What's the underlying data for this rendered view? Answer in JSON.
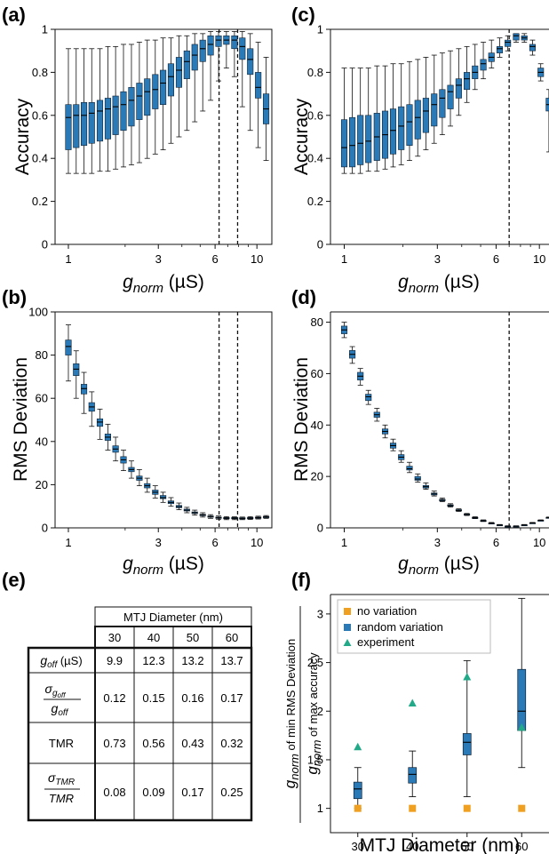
{
  "colors": {
    "box": "#2a7ab8",
    "no_variation": "#f0a020",
    "experiment": "#22aa88",
    "line": "#111111"
  },
  "chart_data": [
    {
      "panel": "(a)",
      "type": "box",
      "ylabel": "Accuracy",
      "xlabel_main": "g",
      "xlabel_sub": "norm",
      "xlabel_unit": " (µS)",
      "xscale": "log",
      "xlim": [
        0.85,
        12
      ],
      "ylim": [
        0,
        1
      ],
      "xticks": [
        1,
        3,
        6,
        10
      ],
      "yticks": [
        0,
        0.2,
        0.4,
        0.6,
        0.8,
        1
      ],
      "ytick_labels": [
        "0",
        "0.2",
        "0.4",
        "0.6",
        "0.8",
        "1"
      ],
      "vlines": [
        6.3,
        7.9
      ],
      "x": [
        1.0,
        1.1,
        1.21,
        1.33,
        1.47,
        1.62,
        1.78,
        1.96,
        2.16,
        2.38,
        2.62,
        2.89,
        3.18,
        3.5,
        3.86,
        4.25,
        4.68,
        5.16,
        5.68,
        6.26,
        6.89,
        7.6,
        8.37,
        9.22,
        10.16,
        11.19
      ],
      "q1": [
        0.44,
        0.45,
        0.46,
        0.47,
        0.48,
        0.49,
        0.51,
        0.53,
        0.55,
        0.58,
        0.6,
        0.63,
        0.65,
        0.69,
        0.73,
        0.77,
        0.81,
        0.85,
        0.88,
        0.92,
        0.93,
        0.91,
        0.86,
        0.79,
        0.68,
        0.56
      ],
      "med": [
        0.59,
        0.6,
        0.6,
        0.61,
        0.62,
        0.63,
        0.64,
        0.65,
        0.67,
        0.69,
        0.71,
        0.72,
        0.75,
        0.78,
        0.81,
        0.85,
        0.88,
        0.91,
        0.93,
        0.95,
        0.95,
        0.95,
        0.92,
        0.86,
        0.73,
        0.63
      ],
      "q3": [
        0.65,
        0.65,
        0.66,
        0.66,
        0.67,
        0.68,
        0.69,
        0.71,
        0.73,
        0.75,
        0.77,
        0.79,
        0.81,
        0.84,
        0.87,
        0.9,
        0.93,
        0.95,
        0.97,
        0.97,
        0.97,
        0.97,
        0.96,
        0.91,
        0.8,
        0.7
      ],
      "wlo": [
        0.33,
        0.33,
        0.33,
        0.33,
        0.34,
        0.34,
        0.35,
        0.36,
        0.37,
        0.38,
        0.4,
        0.42,
        0.44,
        0.47,
        0.5,
        0.53,
        0.57,
        0.62,
        0.67,
        0.76,
        0.82,
        0.78,
        0.64,
        0.53,
        0.45,
        0.39
      ],
      "whi": [
        0.91,
        0.91,
        0.91,
        0.91,
        0.91,
        0.92,
        0.92,
        0.93,
        0.93,
        0.94,
        0.95,
        0.95,
        0.96,
        0.96,
        0.97,
        0.97,
        0.98,
        0.98,
        0.99,
        0.99,
        0.99,
        0.99,
        0.99,
        0.98,
        0.94,
        0.87
      ]
    },
    {
      "panel": "(c)",
      "type": "box",
      "ylabel": "Accuracy",
      "xlabel_main": "g",
      "xlabel_sub": "norm",
      "xlabel_unit": " (µS)",
      "xscale": "log",
      "xlim": [
        0.85,
        11.2
      ],
      "ylim": [
        0,
        1
      ],
      "xticks": [
        1,
        3,
        6,
        10
      ],
      "yticks": [
        0,
        0.2,
        0.4,
        0.6,
        0.8,
        1
      ],
      "ytick_labels": [
        "0",
        "0.2",
        "0.4",
        "0.6",
        "0.8",
        "1"
      ],
      "vlines": [
        7.0
      ],
      "x": [
        1.0,
        1.1,
        1.21,
        1.33,
        1.47,
        1.62,
        1.78,
        1.96,
        2.16,
        2.38,
        2.62,
        2.89,
        3.18,
        3.5,
        3.86,
        4.25,
        4.68,
        5.16,
        5.68,
        6.26,
        6.89,
        7.6,
        8.37,
        9.22,
        10.16,
        11.19
      ],
      "q1": [
        0.36,
        0.36,
        0.37,
        0.38,
        0.39,
        0.4,
        0.42,
        0.44,
        0.46,
        0.49,
        0.52,
        0.55,
        0.59,
        0.63,
        0.68,
        0.72,
        0.77,
        0.81,
        0.85,
        0.89,
        0.92,
        0.95,
        0.95,
        0.9,
        0.78,
        0.62
      ],
      "med": [
        0.45,
        0.46,
        0.47,
        0.48,
        0.5,
        0.51,
        0.53,
        0.55,
        0.57,
        0.59,
        0.62,
        0.65,
        0.68,
        0.71,
        0.74,
        0.77,
        0.8,
        0.84,
        0.87,
        0.91,
        0.94,
        0.97,
        0.96,
        0.92,
        0.8,
        0.65
      ],
      "q3": [
        0.58,
        0.59,
        0.6,
        0.6,
        0.61,
        0.62,
        0.63,
        0.64,
        0.65,
        0.67,
        0.68,
        0.7,
        0.72,
        0.74,
        0.77,
        0.8,
        0.83,
        0.86,
        0.89,
        0.92,
        0.95,
        0.98,
        0.97,
        0.93,
        0.82,
        0.68
      ],
      "wlo": [
        0.33,
        0.33,
        0.33,
        0.34,
        0.34,
        0.35,
        0.36,
        0.37,
        0.39,
        0.41,
        0.44,
        0.47,
        0.51,
        0.55,
        0.6,
        0.66,
        0.72,
        0.77,
        0.82,
        0.87,
        0.9,
        0.94,
        0.94,
        0.88,
        0.76,
        0.43
      ],
      "whi": [
        0.82,
        0.82,
        0.82,
        0.82,
        0.83,
        0.83,
        0.84,
        0.84,
        0.85,
        0.86,
        0.87,
        0.88,
        0.89,
        0.9,
        0.91,
        0.92,
        0.93,
        0.94,
        0.95,
        0.96,
        0.97,
        0.98,
        0.98,
        0.95,
        0.84,
        0.72
      ]
    },
    {
      "panel": "(b)",
      "type": "box",
      "ylabel": "RMS Deviation",
      "xlabel_main": "g",
      "xlabel_sub": "norm",
      "xlabel_unit": " (µS)",
      "xscale": "log",
      "xlim": [
        0.85,
        12
      ],
      "ylim": [
        0,
        100
      ],
      "xticks": [
        1,
        3,
        6,
        10
      ],
      "yticks": [
        0,
        20,
        40,
        60,
        80,
        100
      ],
      "ytick_labels": [
        "0",
        "20",
        "40",
        "60",
        "80",
        "100"
      ],
      "vlines": [
        6.3,
        7.9
      ],
      "x": [
        1.0,
        1.1,
        1.21,
        1.33,
        1.47,
        1.62,
        1.78,
        1.96,
        2.16,
        2.38,
        2.62,
        2.89,
        3.18,
        3.5,
        3.86,
        4.25,
        4.68,
        5.16,
        5.68,
        6.26,
        6.89,
        7.6,
        8.37,
        9.22,
        10.16,
        11.19
      ],
      "q1": [
        80.0,
        70.5,
        62.0,
        54.0,
        47.0,
        40.5,
        35.0,
        30.0,
        26.0,
        22.0,
        18.5,
        15.5,
        13.5,
        11.2,
        9.3,
        7.8,
        6.6,
        5.6,
        4.9,
        4.4,
        4.2,
        4.2,
        4.1,
        4.2,
        4.4,
        4.7
      ],
      "med": [
        84.0,
        73.5,
        64.5,
        56.0,
        49.0,
        42.0,
        36.5,
        31.5,
        27.0,
        23.0,
        19.5,
        16.5,
        14.0,
        11.8,
        9.8,
        8.2,
        7.0,
        6.0,
        5.2,
        4.7,
        4.5,
        4.5,
        4.4,
        4.5,
        4.7,
        5.0
      ],
      "q3": [
        87.0,
        76.0,
        66.5,
        58.0,
        50.5,
        43.5,
        38.0,
        33.0,
        28.0,
        24.0,
        20.5,
        17.5,
        15.0,
        12.5,
        10.4,
        8.7,
        7.4,
        6.3,
        5.5,
        5.0,
        4.8,
        4.8,
        4.7,
        4.8,
        5.0,
        5.3
      ],
      "wlo": [
        68.0,
        60.0,
        53.0,
        47.0,
        41.0,
        36.0,
        31.0,
        26.5,
        23.0,
        19.5,
        16.5,
        13.8,
        11.8,
        10.0,
        8.4,
        7.0,
        5.9,
        5.0,
        4.4,
        4.0,
        3.8,
        3.8,
        3.8,
        3.9,
        4.1,
        4.4
      ],
      "whi": [
        94.0,
        82.0,
        72.0,
        63.0,
        55.0,
        48.0,
        42.0,
        36.0,
        31.0,
        27.0,
        23.0,
        19.5,
        16.5,
        14.0,
        11.5,
        9.5,
        8.2,
        7.0,
        6.1,
        5.5,
        5.2,
        5.1,
        5.0,
        5.2,
        5.4,
        5.7
      ]
    },
    {
      "panel": "(d)",
      "type": "box",
      "ylabel": "RMS Deviation",
      "xlabel_main": "g",
      "xlabel_sub": "norm",
      "xlabel_unit": " (µS)",
      "xscale": "log",
      "xlim": [
        0.85,
        11.2
      ],
      "ylim": [
        0,
        84
      ],
      "xticks": [
        1,
        3,
        6,
        10
      ],
      "yticks": [
        0,
        20,
        40,
        60,
        80
      ],
      "ytick_labels": [
        "0",
        "20",
        "40",
        "60",
        "80"
      ],
      "vlines": [
        7.0
      ],
      "x": [
        1.0,
        1.1,
        1.21,
        1.33,
        1.47,
        1.62,
        1.78,
        1.96,
        2.16,
        2.38,
        2.62,
        2.89,
        3.18,
        3.5,
        3.86,
        4.25,
        4.68,
        5.16,
        5.68,
        6.26,
        6.89,
        7.6,
        8.37,
        9.22,
        10.16,
        11.19
      ],
      "q1": [
        75.5,
        66.0,
        57.5,
        49.5,
        43.0,
        36.5,
        31.0,
        26.5,
        22.5,
        18.5,
        15.5,
        12.8,
        10.5,
        8.4,
        6.6,
        5.0,
        3.7,
        2.6,
        1.7,
        1.0,
        0.5,
        0.5,
        1.0,
        1.8,
        2.8,
        3.9
      ],
      "med": [
        77.0,
        67.5,
        59.0,
        51.0,
        44.0,
        37.5,
        32.0,
        27.5,
        23.0,
        19.0,
        16.0,
        13.2,
        10.8,
        8.7,
        6.8,
        5.2,
        3.9,
        2.7,
        1.8,
        1.1,
        0.6,
        0.6,
        1.1,
        1.9,
        2.9,
        4.0
      ],
      "q3": [
        78.5,
        69.0,
        60.5,
        52.0,
        45.0,
        38.5,
        33.0,
        28.5,
        24.0,
        20.0,
        16.5,
        13.6,
        11.1,
        9.0,
        7.1,
        5.4,
        4.1,
        2.9,
        1.9,
        1.2,
        0.7,
        0.7,
        1.2,
        2.0,
        3.0,
        4.1
      ],
      "wlo": [
        74.0,
        64.0,
        55.5,
        48.0,
        41.5,
        35.0,
        30.0,
        25.5,
        21.5,
        17.8,
        15.0,
        12.4,
        10.2,
        8.1,
        6.4,
        4.8,
        3.6,
        2.5,
        1.6,
        0.9,
        0.4,
        0.4,
        0.9,
        1.7,
        2.7,
        3.8
      ],
      "whi": [
        80.0,
        70.5,
        62.0,
        53.5,
        46.5,
        40.0,
        34.5,
        30.0,
        25.5,
        21.0,
        17.5,
        14.3,
        11.6,
        9.4,
        7.4,
        5.6,
        4.3,
        3.1,
        2.1,
        1.3,
        0.8,
        0.8,
        1.3,
        2.1,
        3.1,
        4.2
      ]
    },
    {
      "panel": "(f)",
      "type": "box",
      "ylabel_num_main": "g",
      "ylabel_num_sub": "norm",
      "ylabel_num_rest": " of min RMS Deviation",
      "ylabel_den_main": "g",
      "ylabel_den_sub": "norm",
      "ylabel_den_rest": " of max accuracy",
      "xlabel": "MTJ Diameter (nm)",
      "xlim": [
        25,
        65
      ],
      "ylim": [
        0.75,
        3.2
      ],
      "xticks": [
        30,
        40,
        50,
        60
      ],
      "yticks": [
        1,
        1.5,
        2,
        2.5,
        3
      ],
      "ytick_labels": [
        "1",
        "1.5",
        "2",
        "2.5",
        "3"
      ],
      "legend": [
        "no variation",
        "random variation",
        "experiment"
      ],
      "legend_position": "top-left",
      "categories": [
        30,
        40,
        50,
        60
      ],
      "no_variation": [
        1.0,
        1.0,
        1.0,
        1.0
      ],
      "experiment": [
        1.63,
        2.08,
        2.35,
        1.83
      ],
      "random_variation": {
        "q1": [
          1.1,
          1.26,
          1.55,
          1.8
        ],
        "med": [
          1.2,
          1.35,
          1.68,
          2.0
        ],
        "q3": [
          1.27,
          1.42,
          1.77,
          2.43
        ],
        "wlo": [
          1.0,
          1.12,
          1.12,
          1.42
        ],
        "whi": [
          1.42,
          1.59,
          2.52,
          3.16
        ]
      }
    }
  ],
  "panel_e": {
    "label": "(e)",
    "header": "MTJ Diameter (nm)",
    "columns": [
      "30",
      "40",
      "50",
      "60"
    ],
    "rows": [
      {
        "label_main": "g",
        "label_sub": "off",
        "label_unit": " (µS)",
        "values": [
          "9.9",
          "12.3",
          "13.2",
          "13.7"
        ]
      },
      {
        "label_num": "σ",
        "label_num_sub": "g",
        "label_num_subsub": "off",
        "label_den": "g",
        "label_den_sub": "off",
        "values": [
          "0.12",
          "0.15",
          "0.16",
          "0.17"
        ]
      },
      {
        "label": "TMR",
        "values": [
          "0.73",
          "0.56",
          "0.43",
          "0.32"
        ]
      },
      {
        "label_num": "σ",
        "label_num_sub": "TMR",
        "label_den": "TMR",
        "values": [
          "0.08",
          "0.09",
          "0.17",
          "0.25"
        ]
      }
    ]
  }
}
